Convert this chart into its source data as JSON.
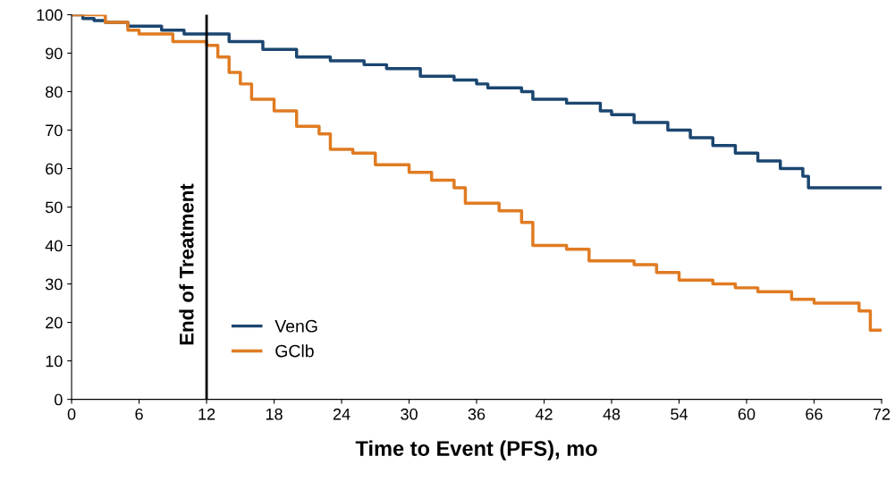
{
  "chart_data": {
    "type": "step",
    "xlabel": "Time to Event (PFS), mo",
    "series": [
      {
        "name": "VenG",
        "color": "#1b4670",
        "x": [
          0,
          1,
          2,
          3,
          5,
          8,
          10,
          12,
          14,
          17,
          20,
          23,
          26,
          28,
          31,
          34,
          36,
          37,
          40,
          41,
          44,
          47,
          48,
          50,
          53,
          55,
          57,
          59,
          61,
          63,
          65,
          65.5,
          72
        ],
        "values": [
          100,
          99,
          98.5,
          98,
          97,
          96,
          95,
          95,
          93,
          91,
          89,
          88,
          87,
          86,
          84,
          83,
          82,
          81,
          80,
          78,
          77,
          75,
          74,
          72,
          70,
          68,
          66,
          64,
          62,
          60,
          58,
          55,
          55
        ]
      },
      {
        "name": "GClb",
        "color": "#e07b22",
        "x": [
          0,
          3,
          5,
          6,
          9,
          12,
          13,
          14,
          15,
          16,
          18,
          20,
          22,
          23,
          25,
          27,
          30,
          32,
          34,
          35,
          38,
          40,
          41,
          44,
          46,
          50,
          52,
          54,
          57,
          59,
          61,
          64,
          66,
          70,
          71,
          72
        ],
        "values": [
          100,
          98,
          96,
          95,
          93,
          92,
          89,
          85,
          82,
          78,
          75,
          71,
          69,
          65,
          64,
          61,
          59,
          57,
          55,
          51,
          49,
          46,
          40,
          39,
          36,
          35,
          33,
          31,
          30,
          29,
          28,
          26,
          25,
          23,
          18,
          18
        ]
      }
    ],
    "xlim": [
      0,
      72
    ],
    "ylim": [
      0,
      100
    ],
    "xticks": [
      0,
      6,
      12,
      18,
      24,
      30,
      36,
      42,
      48,
      54,
      60,
      66,
      72
    ],
    "yticks": [
      0,
      10,
      20,
      30,
      40,
      50,
      60,
      70,
      80,
      90,
      100
    ],
    "ref_lines": [
      {
        "axis": "x",
        "value": 12,
        "label": "End of Treatment",
        "color": "#000000"
      }
    ],
    "legend": "lower left",
    "grid": false,
    "line_style": "solid"
  }
}
